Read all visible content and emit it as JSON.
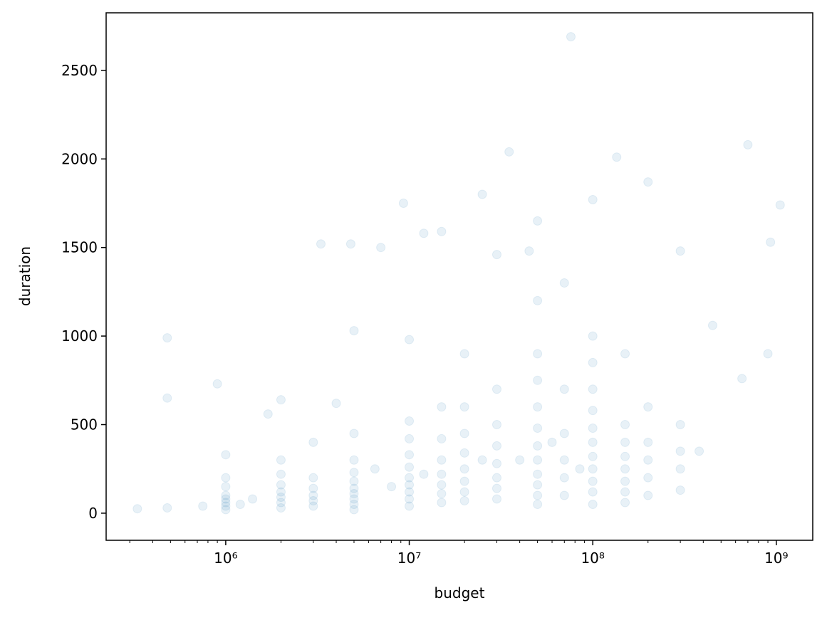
{
  "chart_data": {
    "type": "scatter",
    "xlabel": "budget",
    "ylabel": "duration",
    "color": "#1f77b4",
    "alpha": 0.1,
    "xscale": "log",
    "xlim": [
      223000,
      1580000000
    ],
    "ylim": [
      -153,
      2825
    ],
    "xticks": [
      {
        "value": 1000000.0,
        "label": "10⁶"
      },
      {
        "value": 10000000.0,
        "label": "10⁷"
      },
      {
        "value": 100000000.0,
        "label": "10⁸"
      },
      {
        "value": 1000000000.0,
        "label": "10⁹"
      }
    ],
    "xminorticks": [
      300000.0,
      400000.0,
      500000.0,
      600000.0,
      700000.0,
      800000.0,
      900000.0,
      2000000.0,
      3000000.0,
      4000000.0,
      5000000.0,
      6000000.0,
      7000000.0,
      8000000.0,
      9000000.0,
      20000000.0,
      30000000.0,
      40000000.0,
      50000000.0,
      60000000.0,
      70000000.0,
      80000000.0,
      90000000.0,
      200000000.0,
      300000000.0,
      400000000.0,
      500000000.0,
      600000000.0,
      700000000.0,
      800000000.0,
      900000000.0
    ],
    "yticks": [
      0,
      500,
      1000,
      1500,
      2000,
      2500
    ],
    "x": [
      1000000.0,
      1000000.0,
      1000000.0,
      1000000.0,
      1000000.0,
      1000000.0,
      1000000.0,
      1000000.0,
      2000000.0,
      2000000.0,
      2000000.0,
      2000000.0,
      2000000.0,
      2000000.0,
      2000000.0,
      2000000.0,
      3000000.0,
      3000000.0,
      3000000.0,
      3000000.0,
      3000000.0,
      3000000.0,
      5000000.0,
      5000000.0,
      5000000.0,
      5000000.0,
      5000000.0,
      5000000.0,
      5000000.0,
      5000000.0,
      5000000.0,
      5000000.0,
      10000000.0,
      10000000.0,
      10000000.0,
      10000000.0,
      10000000.0,
      10000000.0,
      10000000.0,
      10000000.0,
      10000000.0,
      10000000.0,
      15000000.0,
      15000000.0,
      15000000.0,
      15000000.0,
      15000000.0,
      15000000.0,
      15000000.0,
      15000000.0,
      20000000.0,
      20000000.0,
      20000000.0,
      20000000.0,
      20000000.0,
      20000000.0,
      20000000.0,
      20000000.0,
      30000000.0,
      30000000.0,
      30000000.0,
      30000000.0,
      30000000.0,
      30000000.0,
      30000000.0,
      30000000.0,
      50000000.0,
      50000000.0,
      50000000.0,
      50000000.0,
      50000000.0,
      50000000.0,
      50000000.0,
      50000000.0,
      50000000.0,
      50000000.0,
      50000000.0,
      50000000.0,
      70000000.0,
      70000000.0,
      70000000.0,
      70000000.0,
      70000000.0,
      70000000.0,
      100000000.0,
      100000000.0,
      100000000.0,
      100000000.0,
      100000000.0,
      100000000.0,
      100000000.0,
      100000000.0,
      100000000.0,
      100000000.0,
      100000000.0,
      100000000.0,
      150000000.0,
      150000000.0,
      150000000.0,
      150000000.0,
      150000000.0,
      150000000.0,
      150000000.0,
      150000000.0,
      200000000.0,
      200000000.0,
      200000000.0,
      200000000.0,
      200000000.0,
      200000000.0,
      300000000.0,
      300000000.0,
      300000000.0,
      300000000.0,
      300000000.0,
      480000.0,
      480000.0,
      480000.0,
      330000.0,
      900000.0,
      3300000.0,
      4800000.0,
      9300000.0,
      25000000.0,
      35000000.0,
      76000000.0,
      135000000.0,
      700000000.0,
      1050000000.0,
      930000000.0,
      900000000.0,
      450000000.0,
      650000000.0,
      380000000.0,
      1700000.0,
      4000000.0,
      6500000.0,
      7000000.0,
      12000000.0,
      45000000.0,
      1200000.0,
      1400000.0,
      750000.0,
      40000000.0,
      60000000.0,
      85000000.0,
      25000000.0,
      12000000.0,
      8000000.0
    ],
    "values": [
      20,
      40,
      60,
      80,
      100,
      150,
      200,
      330,
      30,
      60,
      90,
      120,
      160,
      220,
      300,
      640,
      40,
      70,
      100,
      140,
      200,
      400,
      20,
      50,
      80,
      110,
      140,
      180,
      230,
      300,
      450,
      1030,
      40,
      80,
      120,
      160,
      200,
      260,
      330,
      420,
      520,
      980,
      60,
      110,
      160,
      220,
      300,
      420,
      600,
      1590,
      70,
      120,
      180,
      250,
      340,
      450,
      600,
      900,
      80,
      140,
      200,
      280,
      380,
      500,
      700,
      1460,
      50,
      100,
      160,
      220,
      300,
      380,
      480,
      600,
      750,
      900,
      1200,
      1650,
      100,
      200,
      300,
      450,
      700,
      1300,
      50,
      120,
      180,
      250,
      320,
      400,
      480,
      580,
      700,
      850,
      1000,
      1770,
      60,
      120,
      180,
      250,
      320,
      400,
      500,
      900,
      100,
      200,
      300,
      400,
      600,
      1870,
      130,
      250,
      350,
      500,
      1480,
      990,
      650,
      30,
      25,
      730,
      1520,
      1520,
      1750,
      1800,
      2040,
      2690,
      2010,
      2080,
      1740,
      1530,
      900,
      1060,
      760,
      350,
      560,
      620,
      250,
      1500,
      1580,
      1480,
      50,
      80,
      40,
      300,
      400,
      250,
      300,
      220,
      150
    ]
  }
}
